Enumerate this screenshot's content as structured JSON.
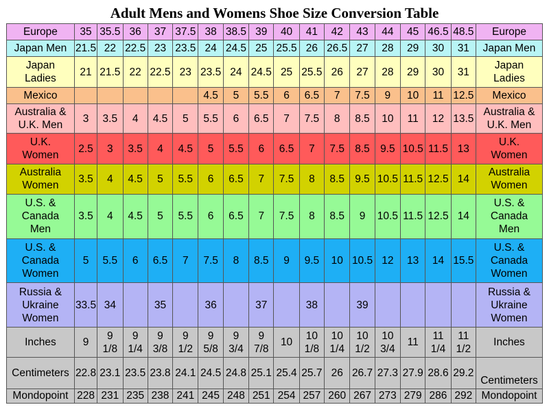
{
  "title": "Adult Mens and Womens Shoe Size Conversion Table",
  "rows": [
    {
      "label": "Europe",
      "color": "#F0B3F2",
      "height": 24,
      "cells": [
        "35",
        "35.5",
        "36",
        "37",
        "37.5",
        "38",
        "38.5",
        "39",
        "40",
        "41",
        "42",
        "43",
        "44",
        "45",
        "46.5",
        "48.5"
      ]
    },
    {
      "label": "Japan Men",
      "color": "#B8F5F5",
      "height": 24,
      "cells": [
        "21.5",
        "22",
        "22.5",
        "23",
        "23.5",
        "24",
        "24.5",
        "25",
        "25.5",
        "26",
        "26.5",
        "27",
        "28",
        "29",
        "30",
        "31"
      ]
    },
    {
      "label": "Japan\nLadies",
      "color": "#FFFFBE",
      "height": 44,
      "cells": [
        "21",
        "21.5",
        "22",
        "22.5",
        "23",
        "23.5",
        "24",
        "24.5",
        "25",
        "25.5",
        "26",
        "27",
        "28",
        "29",
        "30",
        "31"
      ]
    },
    {
      "label": "Mexico",
      "color": "#FAC08C",
      "height": 24,
      "cells": [
        "",
        "",
        "",
        "",
        "",
        "4.5",
        "5",
        "5.5",
        "6",
        "6.5",
        "7",
        "7.5",
        "9",
        "10",
        "11",
        "12.5"
      ]
    },
    {
      "label": "Australia &\nU.K. Men",
      "color": "#FFBEBE",
      "height": 43,
      "cells": [
        "3",
        "3.5",
        "4",
        "4.5",
        "5",
        "5.5",
        "6",
        "6.5",
        "7",
        "7.5",
        "8",
        "8.5",
        "10",
        "11",
        "12",
        "13.5"
      ]
    },
    {
      "label": "U.K.\nWomen",
      "color": "#FF5A5A",
      "height": 44,
      "cells": [
        "2.5",
        "3",
        "3.5",
        "4",
        "4.5",
        "5",
        "5.5",
        "6",
        "6.5",
        "7",
        "7.5",
        "8.5",
        "9.5",
        "10.5",
        "11.5",
        "13"
      ]
    },
    {
      "label": "Australia\nWomen",
      "color": "#D2D200",
      "height": 44,
      "cells": [
        "3.5",
        "4",
        "4.5",
        "5",
        "5.5",
        "6",
        "6.5",
        "7",
        "7.5",
        "8",
        "8.5",
        "9.5",
        "10.5",
        "11.5",
        "12.5",
        "14"
      ]
    },
    {
      "label": "U.S. &\nCanada\nMen",
      "color": "#96FA96",
      "height": 64,
      "cells": [
        "3.5",
        "4",
        "4.5",
        "5",
        "5.5",
        "6",
        "6.5",
        "7",
        "7.5",
        "8",
        "8.5",
        "9",
        "10.5",
        "11.5",
        "12.5",
        "14"
      ]
    },
    {
      "label": "U.S. &\nCanada\nWomen",
      "color": "#1EAFF5",
      "height": 64,
      "cells": [
        "5",
        "5.5",
        "6",
        "6.5",
        "7",
        "7.5",
        "8",
        "8.5",
        "9",
        "9.5",
        "10",
        "10.5",
        "12",
        "13",
        "14",
        "15.5"
      ]
    },
    {
      "label": "Russia &\nUkraine\nWomen",
      "color": "#B4B4F5",
      "height": 64,
      "cells": [
        "33.5",
        "34",
        "",
        "35",
        "",
        "36",
        "",
        "37",
        "",
        "38",
        "",
        "39",
        "",
        "",
        "",
        ""
      ]
    },
    {
      "label": "Inches",
      "color": "#C8C8C8",
      "height": 44,
      "cells": [
        "9",
        "9\n1/8",
        "9\n1/4",
        "9\n3/8",
        "9\n1/2",
        "9\n5/8",
        "9\n3/4",
        "9\n7/8",
        "10",
        "10\n1/8",
        "10\n1/4",
        "10\n1/2",
        "10\n3/4",
        "11",
        "11\n1/4",
        "11\n1/2"
      ]
    },
    {
      "label": "Centimeters",
      "color": "#C8C8C8",
      "height": 45,
      "cells": [
        "22.8",
        "23.1",
        "23.5",
        "23.8",
        "24.1",
        "24.5",
        "24.8",
        "25.1",
        "25.4",
        "25.7",
        "26",
        "26.7",
        "27.3",
        "27.9",
        "28.6",
        "29.2"
      ]
    },
    {
      "label": "Mondopoint",
      "color": "#C8C8C8",
      "height": 21,
      "cells": [
        "228",
        "231",
        "235",
        "238",
        "241",
        "245",
        "248",
        "251",
        "254",
        "257",
        "260",
        "267",
        "273",
        "279",
        "286",
        "292"
      ]
    }
  ]
}
